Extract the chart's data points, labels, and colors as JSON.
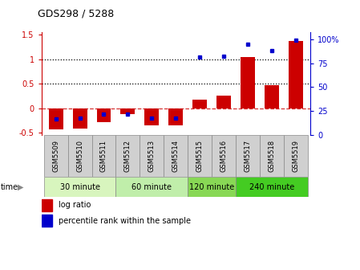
{
  "title": "GDS298 / 5288",
  "samples": [
    "GSM5509",
    "GSM5510",
    "GSM5511",
    "GSM5512",
    "GSM5513",
    "GSM5514",
    "GSM5515",
    "GSM5516",
    "GSM5517",
    "GSM5518",
    "GSM5519"
  ],
  "log_ratio": [
    -0.44,
    -0.42,
    -0.28,
    -0.13,
    -0.35,
    -0.36,
    0.18,
    0.25,
    1.04,
    0.47,
    1.37
  ],
  "percentile": [
    17,
    18,
    22,
    22,
    18,
    18,
    81,
    82,
    95,
    88,
    99
  ],
  "groups": [
    {
      "label": "30 minute",
      "indices": [
        0,
        1,
        2
      ],
      "color": "#d8f5be"
    },
    {
      "label": "60 minute",
      "indices": [
        3,
        4,
        5
      ],
      "color": "#c0eeaa"
    },
    {
      "label": "120 minute",
      "indices": [
        6,
        7
      ],
      "color": "#88d855"
    },
    {
      "label": "240 minute",
      "indices": [
        8,
        9,
        10
      ],
      "color": "#44cc22"
    }
  ],
  "bar_color": "#cc0000",
  "dot_color": "#0000cc",
  "ylim_left": [
    -0.55,
    1.55
  ],
  "ylim_right": [
    0,
    107
  ],
  "yticks_left": [
    -0.5,
    0.0,
    0.5,
    1.0,
    1.5
  ],
  "ytick_labels_left": [
    "-0.5",
    "0",
    "0.5",
    "1",
    "1.5"
  ],
  "yticks_right": [
    0,
    25,
    50,
    75,
    100
  ],
  "ytick_labels_right": [
    "0",
    "25",
    "50",
    "75",
    "100%"
  ],
  "hlines": [
    0.5,
    1.0
  ],
  "zero_line_y": 0.0,
  "background_color": "#ffffff",
  "sample_box_color": "#d0d0d0",
  "sample_box_edge": "#888888"
}
